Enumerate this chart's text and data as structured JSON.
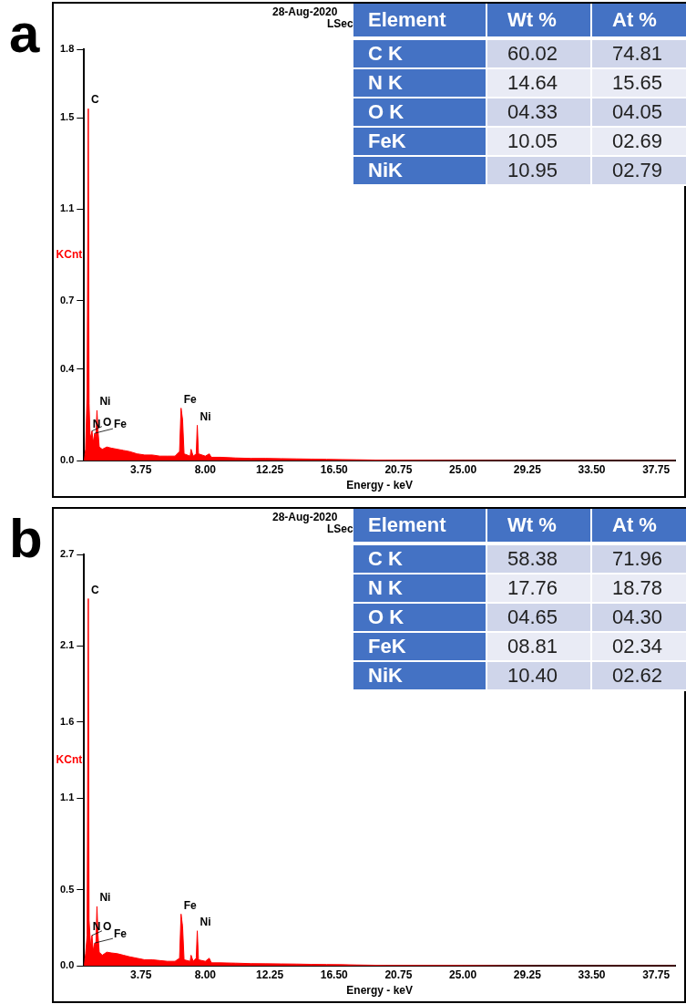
{
  "chart_data": [
    {
      "type": "area",
      "title": "a",
      "xlabel": "Energy - keV",
      "ylabel": "KCnt",
      "xlim": [
        0,
        39
      ],
      "xticks": [
        3.75,
        {
          "value": 8,
          "label": "8.00"
        },
        12.25,
        {
          "value": 16.5,
          "label": "16.50"
        },
        20.75,
        {
          "value": 25,
          "label": "25.00"
        },
        29.25,
        {
          "value": 33.5,
          "label": "33.50"
        },
        37.75
      ],
      "ylim": [
        0,
        1.8
      ],
      "yticks": [
        {
          "value": 0,
          "label": "0.0"
        },
        0.4,
        0.7,
        1.1,
        1.5,
        1.8
      ],
      "grid": false,
      "legend": false,
      "annotations": [
        "28-Aug-2020",
        "LSec",
        {
          "text": "C",
          "x": 0.28,
          "y": 1.54
        },
        {
          "text": "N",
          "x": 0.39,
          "y": 0.12
        },
        {
          "text": "O",
          "x": 0.52,
          "y": 0.13
        },
        {
          "text": "Fe",
          "x": 0.7,
          "y": 0.12
        },
        {
          "text": "Ni",
          "x": 0.85,
          "y": 0.22
        },
        {
          "text": "Fe",
          "x": 6.4,
          "y": 0.23
        },
        {
          "text": "Ni",
          "x": 7.47,
          "y": 0.155
        }
      ],
      "series": [
        {
          "color": "#ff0000",
          "x": [
            0,
            0.1,
            0.2,
            0.28,
            0.33,
            0.39,
            0.45,
            0.52,
            0.6,
            0.7,
            0.78,
            0.85,
            0.92,
            1.0,
            1.2,
            1.5,
            1.8,
            2.2,
            2.6,
            3.0,
            3.5,
            4.0,
            4.5,
            5.0,
            5.5,
            6.0,
            6.3,
            6.4,
            6.5,
            6.6,
            7.0,
            7.06,
            7.2,
            7.4,
            7.47,
            7.55,
            8.0,
            8.26,
            8.4,
            9.0,
            10,
            11,
            12,
            13,
            14,
            15,
            16,
            17,
            18,
            20,
            25,
            30,
            39
          ],
          "values": [
            0,
            0.05,
            0.3,
            1.54,
            0.25,
            0.12,
            0.1,
            0.13,
            0.08,
            0.12,
            0.1,
            0.22,
            0.13,
            0.06,
            0.05,
            0.06,
            0.055,
            0.05,
            0.045,
            0.04,
            0.03,
            0.025,
            0.025,
            0.02,
            0.02,
            0.02,
            0.04,
            0.23,
            0.18,
            0.03,
            0.02,
            0.05,
            0.02,
            0.03,
            0.155,
            0.03,
            0.02,
            0.03,
            0.015,
            0.015,
            0.012,
            0.01,
            0.01,
            0.009,
            0.008,
            0.007,
            0.006,
            0.005,
            0.004,
            0.002,
            0.001,
            0,
            0
          ]
        }
      ]
    },
    {
      "type": "other",
      "annotations": [
        "Element",
        "Wt %",
        "At %",
        "C K",
        "60.02",
        "74.81",
        "N K",
        "14.64",
        "15.65",
        "O K",
        "04.33",
        "04.05",
        "FeK",
        "10.05",
        "02.69",
        "NiK",
        "10.95",
        "02.79"
      ]
    },
    {
      "type": "area",
      "title": "b",
      "xlabel": "Energy - keV",
      "ylabel": "KCnt",
      "xlim": [
        0,
        39
      ],
      "xticks": [
        3.75,
        {
          "value": 8,
          "label": "8.00"
        },
        12.25,
        {
          "value": 16.5,
          "label": "16.50"
        },
        20.75,
        {
          "value": 25,
          "label": "25.00"
        },
        29.25,
        {
          "value": 33.5,
          "label": "33.50"
        },
        37.75
      ],
      "ylim": [
        0,
        2.7
      ],
      "yticks": [
        {
          "value": 0,
          "label": "0.0"
        },
        0.5,
        1.1,
        1.6,
        2.1,
        2.7
      ],
      "grid": false,
      "legend": false,
      "annotations": [
        "28-Aug-2020",
        "LSec",
        {
          "text": "C",
          "x": 0.28,
          "y": 2.41
        },
        {
          "text": "N",
          "x": 0.39,
          "y": 0.2
        },
        {
          "text": "O",
          "x": 0.52,
          "y": 0.2
        },
        {
          "text": "Fe",
          "x": 0.7,
          "y": 0.15
        },
        {
          "text": "Ni",
          "x": 0.85,
          "y": 0.39
        },
        {
          "text": "Fe",
          "x": 6.4,
          "y": 0.34
        },
        {
          "text": "Ni",
          "x": 7.47,
          "y": 0.23
        }
      ],
      "series": [
        {
          "color": "#ff0000",
          "x": [
            0,
            0.1,
            0.2,
            0.28,
            0.33,
            0.39,
            0.45,
            0.52,
            0.6,
            0.7,
            0.78,
            0.85,
            0.92,
            1.0,
            1.2,
            1.5,
            1.8,
            2.2,
            2.6,
            3.0,
            3.5,
            4.0,
            4.5,
            5.0,
            5.5,
            6.0,
            6.3,
            6.4,
            6.5,
            6.6,
            7.0,
            7.06,
            7.2,
            7.4,
            7.47,
            7.55,
            8.0,
            8.26,
            8.4,
            9.0,
            10,
            11,
            12,
            13,
            14,
            15,
            16,
            17,
            18,
            20,
            25,
            30,
            39
          ],
          "values": [
            0,
            0.08,
            0.2,
            2.41,
            0.3,
            0.2,
            0.12,
            0.2,
            0.1,
            0.15,
            0.14,
            0.39,
            0.2,
            0.09,
            0.07,
            0.09,
            0.085,
            0.08,
            0.07,
            0.06,
            0.05,
            0.04,
            0.04,
            0.035,
            0.03,
            0.03,
            0.05,
            0.34,
            0.26,
            0.04,
            0.03,
            0.07,
            0.03,
            0.05,
            0.23,
            0.04,
            0.03,
            0.05,
            0.02,
            0.02,
            0.018,
            0.015,
            0.014,
            0.013,
            0.012,
            0.01,
            0.009,
            0.008,
            0.006,
            0.003,
            0.002,
            0,
            0
          ]
        }
      ]
    },
    {
      "type": "other",
      "annotations": [
        "Element",
        "Wt %",
        "At %",
        "C K",
        "58.38",
        "71.96",
        "N K",
        "17.76",
        "18.78",
        "O K",
        "04.65",
        "04.30",
        "FeK",
        "08.81",
        "02.34",
        "NiK",
        "10.40",
        "02.62"
      ]
    }
  ]
}
